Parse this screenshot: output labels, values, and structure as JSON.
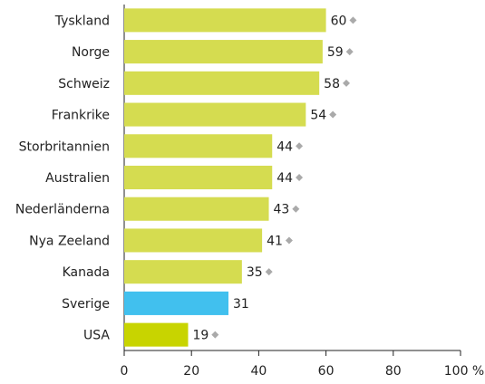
{
  "chart_data": {
    "type": "barh",
    "categories": [
      "Tyskland",
      "Norge",
      "Schweiz",
      "Frankrike",
      "Storbritannien",
      "Australien",
      "Nederländerna",
      "Nya Zeeland",
      "Kanada",
      "Sverige",
      "USA"
    ],
    "values": [
      60,
      59,
      58,
      54,
      44,
      44,
      43,
      41,
      35,
      31,
      19
    ],
    "colors": [
      "#d5dc50",
      "#d5dc50",
      "#d5dc50",
      "#d5dc50",
      "#d5dc50",
      "#d5dc50",
      "#d5dc50",
      "#d5dc50",
      "#d5dc50",
      "#41c0ee",
      "#c8d400"
    ],
    "markers": [
      true,
      true,
      true,
      true,
      true,
      true,
      true,
      true,
      true,
      false,
      true
    ],
    "marker_color": "#aaaaaa",
    "xlim": [
      0,
      100
    ],
    "xticks": [
      0,
      20,
      40,
      60,
      80,
      {
        "value": 100,
        "label": "100 %"
      }
    ],
    "grid": false
  }
}
